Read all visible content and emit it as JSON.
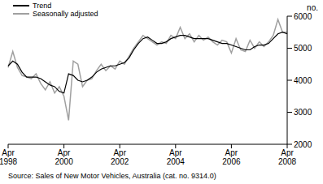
{
  "chart_data": {
    "type": "line",
    "y_label": "no.",
    "annotations": [
      "Source: Sales of New Motor Vehicles, Australia (cat. no. 9314.0)"
    ],
    "categories": [
      "Apr 1998",
      null,
      null,
      null,
      null,
      null,
      null,
      null,
      null,
      null,
      null,
      null,
      "Apr 2000",
      null,
      null,
      null,
      null,
      null,
      null,
      null,
      null,
      null,
      null,
      null,
      "Apr 2002",
      null,
      null,
      null,
      null,
      null,
      null,
      null,
      null,
      null,
      null,
      null,
      "Apr 2004",
      null,
      null,
      null,
      null,
      null,
      null,
      null,
      null,
      null,
      null,
      null,
      "Apr 2006",
      null,
      null,
      null,
      null,
      null,
      null,
      null,
      null,
      null,
      null,
      null,
      "Apr 2008"
    ],
    "series": [
      {
        "name": "Trend",
        "color": "#000000",
        "values": [
          4450,
          4600,
          4500,
          4250,
          4100,
          4100,
          4100,
          4050,
          3950,
          3850,
          3800,
          3650,
          3600,
          4200,
          4150,
          4000,
          3950,
          4000,
          4100,
          4250,
          4350,
          4400,
          4450,
          4450,
          4500,
          4550,
          4700,
          4950,
          5150,
          5300,
          5350,
          5250,
          5150,
          5150,
          5200,
          5300,
          5350,
          5400,
          5400,
          5350,
          5300,
          5300,
          5300,
          5300,
          5250,
          5200,
          5150,
          5150,
          5100,
          5050,
          5000,
          4950,
          4950,
          5050,
          5100,
          5100,
          5150,
          5300,
          5450,
          5500,
          5450
        ]
      },
      {
        "name": "Seasonally adjusted",
        "color": "#a0a0a0",
        "values": [
          4400,
          4900,
          4400,
          4150,
          4100,
          4050,
          4200,
          3900,
          3700,
          3950,
          3600,
          3800,
          3500,
          2750,
          4600,
          4500,
          3800,
          4000,
          4050,
          4300,
          4500,
          4300,
          4450,
          4350,
          4600,
          4500,
          4750,
          5000,
          5200,
          5400,
          5300,
          5200,
          5100,
          5200,
          5150,
          5400,
          5300,
          5650,
          5300,
          5450,
          5200,
          5400,
          5250,
          5350,
          5200,
          5100,
          5250,
          5200,
          4850,
          5300,
          4950,
          4900,
          5250,
          5000,
          5200,
          5050,
          5200,
          5400,
          5900,
          5500,
          5500
        ]
      }
    ],
    "ylim": [
      2000,
      6000
    ],
    "yticks": [
      2000,
      3000,
      4000,
      5000,
      6000
    ],
    "grid": false,
    "legend": "top-left"
  }
}
